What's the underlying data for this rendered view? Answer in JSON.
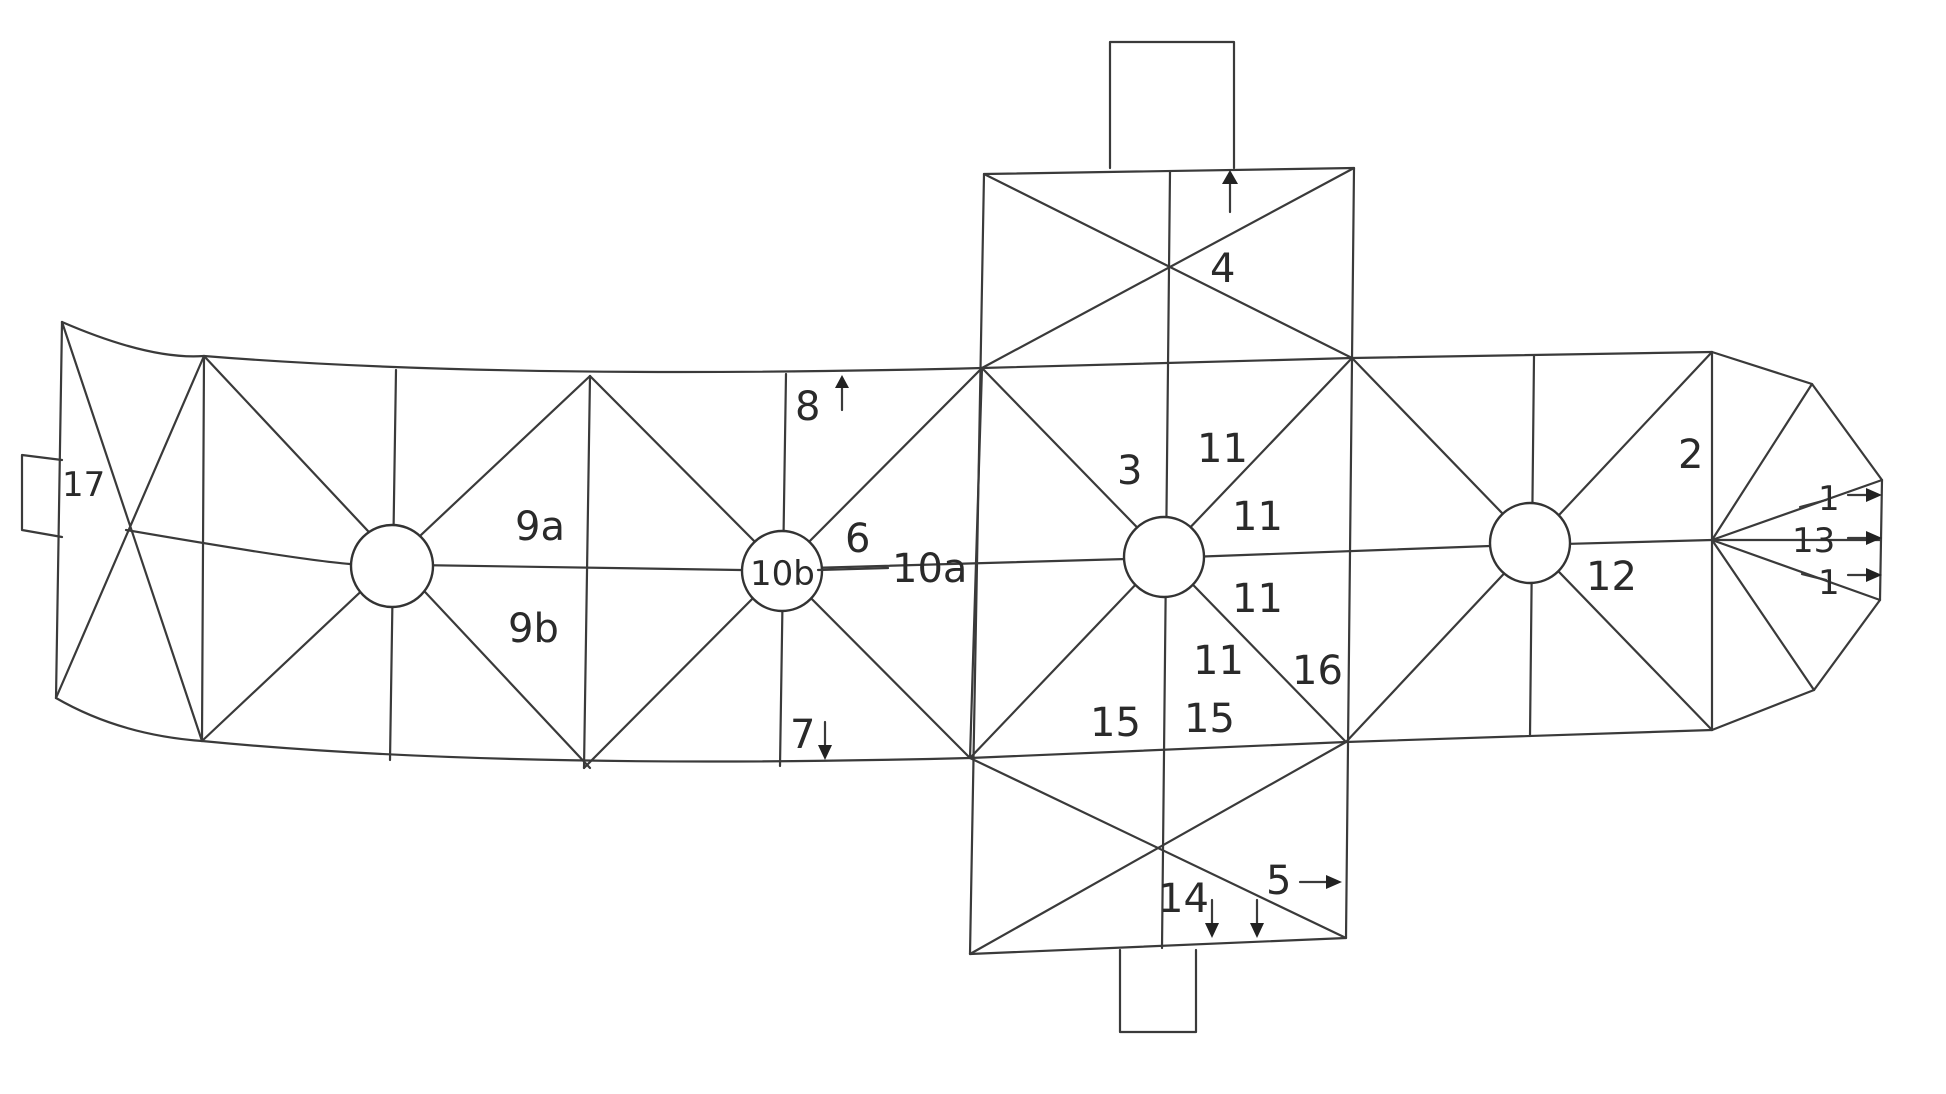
{
  "figure": {
    "labels": {
      "l1a": "1",
      "l1b": "1",
      "l2": "2",
      "l3": "3",
      "l4": "4",
      "l5": "5",
      "l6": "6",
      "l7": "7",
      "l8": "8",
      "l9a": "9a",
      "l9b": "9b",
      "l10a": "10a",
      "l10b": "10b",
      "l11a": "11",
      "l11b": "11",
      "l11c": "11",
      "l11d": "11",
      "l12": "12",
      "l13": "13",
      "l14": "14",
      "l15a": "15",
      "l15b": "15",
      "l16": "16",
      "l17": "17"
    },
    "colors": {
      "line": "#3a3a3a",
      "text": "#2a2a2a",
      "background": "#ffffff"
    }
  }
}
